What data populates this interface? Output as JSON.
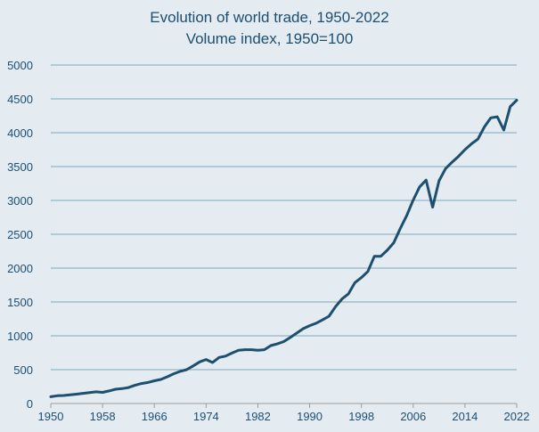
{
  "chart_data": {
    "type": "line",
    "title": "Evolution of world trade, 1950-2022",
    "subtitle": "Volume index, 1950=100",
    "xlabel": "",
    "ylabel": "",
    "xlim": [
      1950,
      2022
    ],
    "ylim": [
      0,
      5000
    ],
    "x_ticks": [
      1950,
      1958,
      1966,
      1974,
      1982,
      1990,
      1998,
      2006,
      2014,
      2022
    ],
    "y_ticks": [
      0,
      500,
      1000,
      1500,
      2000,
      2500,
      3000,
      3500,
      4000,
      4500,
      5000
    ],
    "grid": "horizontal",
    "legend": "none",
    "colors": {
      "line": "#1d4f6e",
      "grid": "#7fa8c0",
      "background": "#e4ecf1",
      "text": "#1d4f73"
    },
    "x": [
      1950,
      1951,
      1952,
      1953,
      1954,
      1955,
      1956,
      1957,
      1958,
      1959,
      1960,
      1961,
      1962,
      1963,
      1964,
      1965,
      1966,
      1967,
      1968,
      1969,
      1970,
      1971,
      1972,
      1973,
      1974,
      1975,
      1976,
      1977,
      1978,
      1979,
      1980,
      1981,
      1982,
      1983,
      1984,
      1985,
      1986,
      1987,
      1988,
      1989,
      1990,
      1991,
      1992,
      1993,
      1994,
      1995,
      1996,
      1997,
      1998,
      1999,
      2000,
      2001,
      2002,
      2003,
      2004,
      2005,
      2006,
      2007,
      2008,
      2009,
      2010,
      2011,
      2012,
      2013,
      2014,
      2015,
      2016,
      2017,
      2018,
      2019,
      2020,
      2021,
      2022
    ],
    "y": [
      100,
      115,
      118,
      128,
      138,
      150,
      162,
      172,
      165,
      185,
      210,
      220,
      235,
      268,
      295,
      310,
      335,
      355,
      395,
      440,
      475,
      500,
      555,
      615,
      650,
      605,
      680,
      700,
      745,
      785,
      795,
      795,
      785,
      795,
      855,
      880,
      915,
      975,
      1040,
      1105,
      1150,
      1185,
      1235,
      1290,
      1430,
      1545,
      1620,
      1785,
      1860,
      1950,
      2175,
      2175,
      2265,
      2375,
      2585,
      2775,
      3005,
      3200,
      3300,
      2900,
      3290,
      3470,
      3565,
      3650,
      3750,
      3835,
      3905,
      4085,
      4220,
      4235,
      4040,
      4385,
      4480
    ]
  }
}
